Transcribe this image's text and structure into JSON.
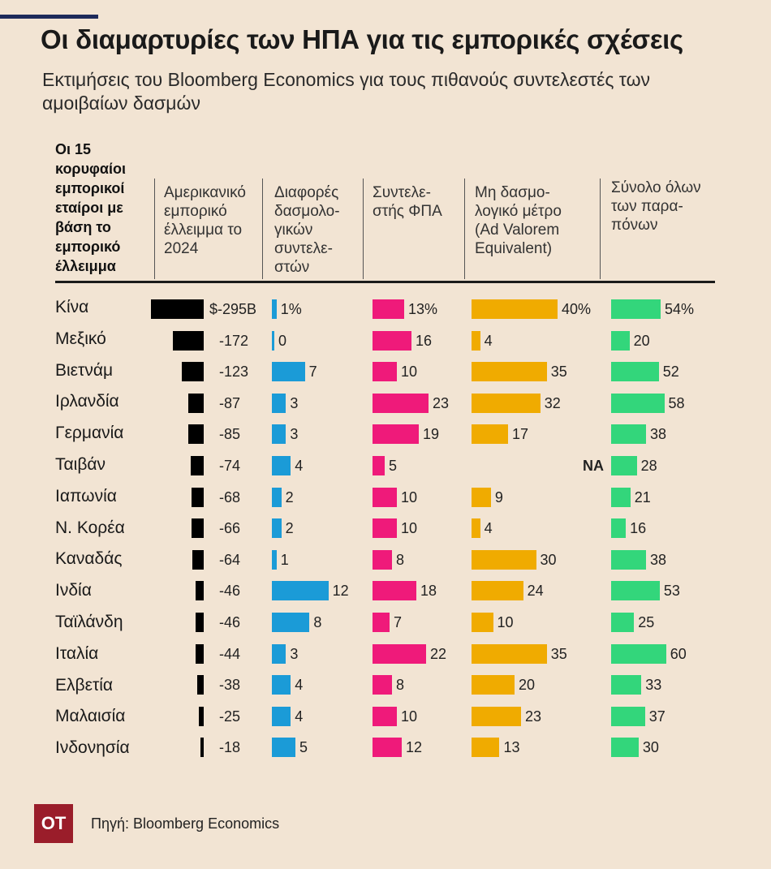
{
  "title": "Οι διαμαρτυρίες των ΗΠΑ για τις εμπορικές σχέσεις",
  "subtitle": "Εκτιμήσεις του Bloomberg Economics για τους πιθανούς συντελεστές των αμοιβαίων δασμών",
  "source": "Πηγή: Bloomberg Economics",
  "logo_text": "OT",
  "colors": {
    "deficit": "#000000",
    "tariff_diff": "#1b9bd7",
    "vat": "#ef1a7a",
    "non_tariff": "#f0ab00",
    "total": "#33d67b",
    "background": "#f2e4d3"
  },
  "chart_data": {
    "type": "bar",
    "column_headers": [
      "Οι 15 κορυφαίοι εμπορικοί εταίροι με βάση το εμπορικό έλλειμμα",
      "Αμερικανικό εμπορικό έλλειμμα το 2024",
      "Διαφορές δασμολο- γικών συντελε- στών",
      "Συντελε- στής ΦΠΑ",
      "Μη δασμο- λογικό μέτρο (Ad Valorem Equivalent)",
      "Σύνολο όλων των παρα- πόνων"
    ],
    "categories": [
      "Κίνα",
      "Μεξικό",
      "Βιετνάμ",
      "Ιρλανδία",
      "Γερμανία",
      "Ταιβάν",
      "Ιαπωνία",
      "Ν. Κορέα",
      "Καναδάς",
      "Ινδία",
      "Ταϊλάνδη",
      "Ιταλία",
      "Ελβετία",
      "Μαλαισία",
      "Ινδονησία"
    ],
    "series": [
      {
        "name": "Αμερικανικό εμπορικό έλλειμμα το 2024",
        "values": [
          -295,
          -172,
          -123,
          -87,
          -85,
          -74,
          -68,
          -66,
          -64,
          -46,
          -46,
          -44,
          -38,
          -25,
          -18
        ],
        "labels": [
          "$-295B",
          "-172",
          "-123",
          "-87",
          "-85",
          "-74",
          "-68",
          "-66",
          "-64",
          "-46",
          "-46",
          "-44",
          "-38",
          "-25",
          "-18"
        ]
      },
      {
        "name": "Διαφορές δασμολογικών συντελεστών",
        "values": [
          1,
          0,
          7,
          3,
          3,
          4,
          2,
          2,
          1,
          12,
          8,
          3,
          4,
          4,
          5
        ],
        "labels": [
          "1%",
          "0",
          "7",
          "3",
          "3",
          "4",
          "2",
          "2",
          "1",
          "12",
          "8",
          "3",
          "4",
          "4",
          "5"
        ]
      },
      {
        "name": "Συντελεστής ΦΠΑ",
        "values": [
          13,
          16,
          10,
          23,
          19,
          5,
          10,
          10,
          8,
          18,
          7,
          22,
          8,
          10,
          12
        ],
        "labels": [
          "13%",
          "16",
          "10",
          "23",
          "19",
          "5",
          "10",
          "10",
          "8",
          "18",
          "7",
          "22",
          "8",
          "10",
          "12"
        ]
      },
      {
        "name": "Μη δασμολογικό μέτρο (Ad Valorem Equivalent)",
        "values": [
          40,
          4,
          35,
          32,
          17,
          null,
          9,
          4,
          30,
          24,
          10,
          35,
          20,
          23,
          13
        ],
        "labels": [
          "40%",
          "4",
          "35",
          "32",
          "17",
          "NA",
          "9",
          "4",
          "30",
          "24",
          "10",
          "35",
          "20",
          "23",
          "13"
        ]
      },
      {
        "name": "Σύνολο όλων των παραπόνων",
        "values": [
          54,
          20,
          52,
          58,
          38,
          28,
          21,
          16,
          38,
          53,
          25,
          60,
          33,
          37,
          30
        ],
        "labels": [
          "54%",
          "20",
          "52",
          "58",
          "38",
          "28",
          "21",
          "16",
          "38",
          "53",
          "25",
          "60",
          "33",
          "37",
          "30"
        ]
      }
    ]
  }
}
